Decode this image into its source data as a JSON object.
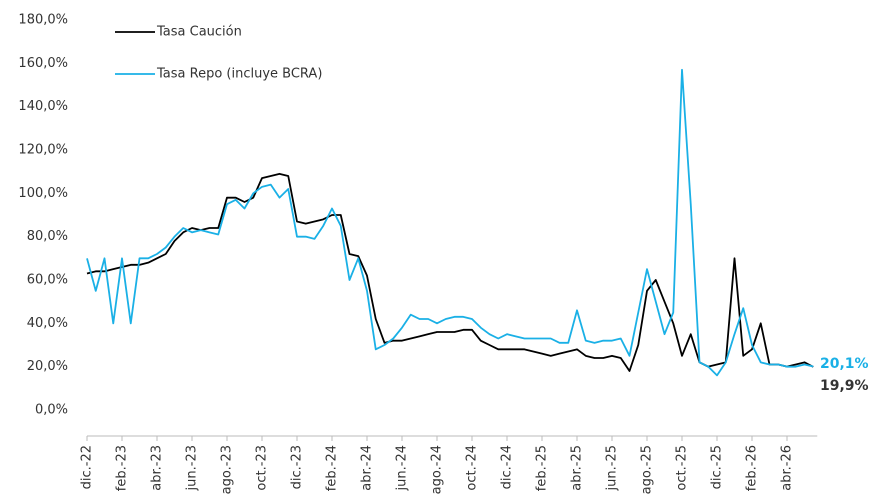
{
  "chart_data": {
    "type": "line",
    "categories": [
      "dic.-22",
      null,
      null,
      null,
      "feb.-23",
      null,
      null,
      null,
      "abr.-23",
      null,
      null,
      null,
      "jun.-23",
      null,
      null,
      null,
      "ago.-23",
      null,
      null,
      null,
      "oct.-23",
      null,
      null,
      null,
      "dic.-23",
      null,
      null,
      null,
      "feb.-24",
      null,
      null,
      null,
      "abr.-24",
      null,
      null,
      null,
      "jun.-24",
      null,
      null,
      null,
      "ago.-24",
      null,
      null,
      null,
      "oct.-24",
      null,
      null,
      null,
      "dic.-24",
      null,
      null,
      null,
      "feb.-25",
      null,
      null,
      null,
      "abr.-25",
      null,
      null,
      null,
      "jun.-25",
      null,
      null,
      null,
      "ago.-25",
      null,
      null,
      null,
      "oct.-25",
      null,
      null,
      null,
      "dic.-25",
      null,
      null,
      null,
      "feb.-26",
      null,
      null,
      null,
      "abr.-26",
      null,
      null,
      null
    ],
    "series": [
      {
        "name": "Tasa Caución",
        "color": "#000000",
        "end_label": "19,9%",
        "values": [
          63,
          64,
          64,
          65,
          66,
          67,
          67,
          68,
          70,
          72,
          78,
          82,
          84,
          83,
          84,
          84,
          98,
          98,
          96,
          98,
          107,
          108,
          109,
          108,
          87,
          86,
          87,
          88,
          90,
          90,
          72,
          71,
          62,
          42,
          31,
          32,
          32,
          33,
          34,
          35,
          36,
          36,
          36,
          37,
          37,
          32,
          30,
          28,
          28,
          28,
          28,
          27,
          26,
          25,
          26,
          27,
          28,
          25,
          24,
          24,
          25,
          24,
          18,
          30,
          55,
          60,
          50,
          40,
          25,
          35,
          22,
          20,
          21,
          22,
          70,
          25,
          28,
          40,
          21,
          21,
          20,
          21,
          22,
          19.9
        ]
      },
      {
        "name": "Tasa Repo (incluye BCRA)",
        "color": "#1ab0e6",
        "end_label": "20,1%",
        "values": [
          70,
          55,
          70,
          40,
          70,
          40,
          70,
          70,
          72,
          75,
          80,
          84,
          82,
          83,
          82,
          81,
          95,
          97,
          93,
          100,
          103,
          104,
          98,
          102,
          80,
          80,
          79,
          85,
          93,
          85,
          60,
          70,
          55,
          28,
          30,
          33,
          38,
          44,
          42,
          42,
          40,
          42,
          43,
          43,
          42,
          38,
          35,
          33,
          35,
          34,
          33,
          33,
          33,
          33,
          31,
          31,
          46,
          32,
          31,
          32,
          32,
          33,
          25,
          45,
          65,
          50,
          35,
          45,
          157,
          95,
          22,
          20,
          16,
          22,
          35,
          47,
          30,
          22,
          21,
          21,
          20,
          20,
          21,
          20.1
        ]
      }
    ],
    "ylim": [
      0,
      180
    ],
    "yticks": [
      {
        "value": 0,
        "label": "0,0%"
      },
      {
        "value": 20,
        "label": "20,0%"
      },
      {
        "value": 40,
        "label": "40,0%"
      },
      {
        "value": 60,
        "label": "60,0%"
      },
      {
        "value": 80,
        "label": "80,0%"
      },
      {
        "value": 100,
        "label": "100,0%"
      },
      {
        "value": 120,
        "label": "120,0%"
      },
      {
        "value": 140,
        "label": "140,0%"
      },
      {
        "value": 160,
        "label": "160,0%"
      },
      {
        "value": 180,
        "label": "180,0%"
      }
    ],
    "grid": false,
    "legend": "upper left"
  }
}
